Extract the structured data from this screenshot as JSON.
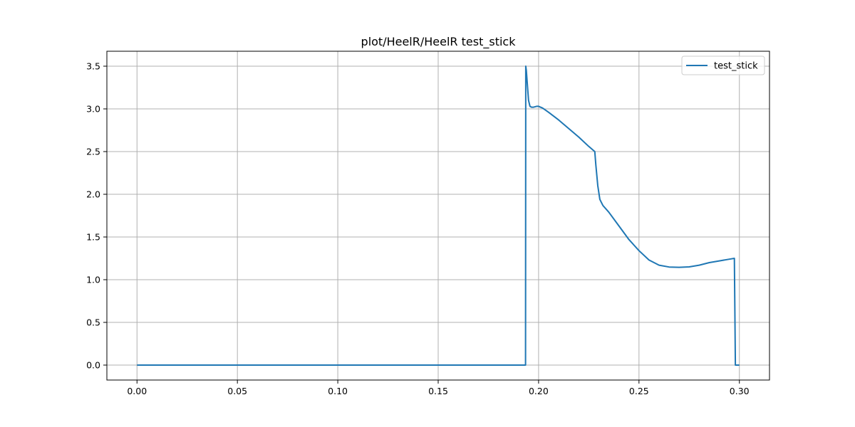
{
  "chart_data": {
    "type": "line",
    "title": "plot/HeelR/HeelR test_stick",
    "xlabel": "",
    "ylabel": "",
    "xlim": [
      -0.015,
      0.315
    ],
    "ylim": [
      -0.175,
      3.675
    ],
    "x_ticks": [
      0.0,
      0.05,
      0.1,
      0.15,
      0.2,
      0.25,
      0.3
    ],
    "x_tick_labels": [
      "0.00",
      "0.05",
      "0.10",
      "0.15",
      "0.20",
      "0.25",
      "0.30"
    ],
    "y_ticks": [
      0.0,
      0.5,
      1.0,
      1.5,
      2.0,
      2.5,
      3.0,
      3.5
    ],
    "y_tick_labels": [
      "0.0",
      "0.5",
      "1.0",
      "1.5",
      "2.0",
      "2.5",
      "3.0",
      "3.5"
    ],
    "grid": true,
    "legend_position": "upper right",
    "series": [
      {
        "name": "test_stick",
        "color": "#1f77b4",
        "x": [
          0.0,
          0.1935,
          0.1936,
          0.1939,
          0.195,
          0.1957,
          0.1965,
          0.1975,
          0.199,
          0.2,
          0.202,
          0.205,
          0.21,
          0.215,
          0.22,
          0.225,
          0.228,
          0.2285,
          0.2295,
          0.2305,
          0.232,
          0.235,
          0.24,
          0.245,
          0.25,
          0.255,
          0.26,
          0.265,
          0.27,
          0.275,
          0.28,
          0.285,
          0.29,
          0.295,
          0.2975,
          0.298,
          0.3
        ],
        "y": [
          0.0,
          0.0,
          3.5,
          3.45,
          3.1,
          3.03,
          3.02,
          3.02,
          3.03,
          3.03,
          3.01,
          2.96,
          2.87,
          2.77,
          2.67,
          2.56,
          2.5,
          2.35,
          2.1,
          1.94,
          1.87,
          1.79,
          1.63,
          1.47,
          1.34,
          1.23,
          1.17,
          1.148,
          1.145,
          1.15,
          1.17,
          1.2,
          1.22,
          1.24,
          1.25,
          0.0,
          0.0
        ]
      }
    ]
  }
}
